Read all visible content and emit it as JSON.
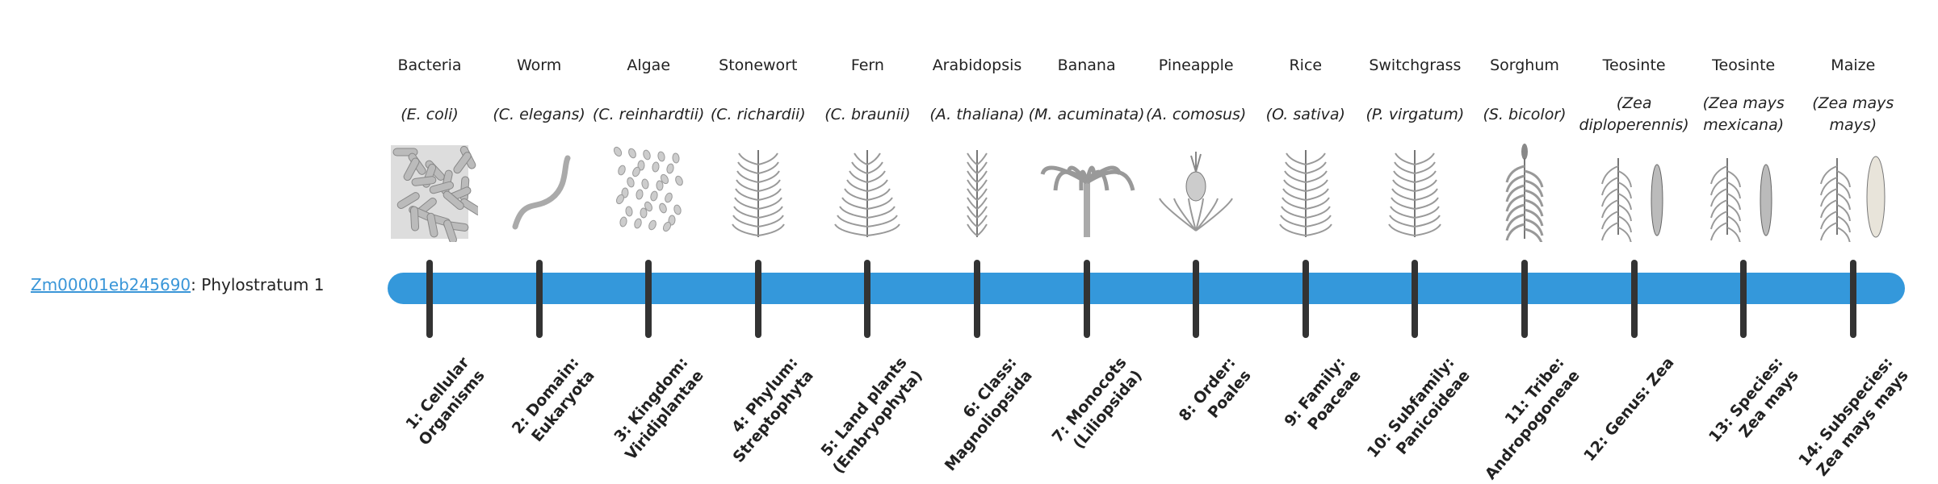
{
  "gene": {
    "id": "Zm00001eb245690",
    "suffix": ": Phylostratum 1"
  },
  "colors": {
    "bar": "#3498db",
    "tick": "#333333",
    "link": "#3a96d8"
  },
  "strata": [
    {
      "common": "Bacteria",
      "sci": "(E. coli)",
      "icon": "bacteria-icon",
      "rank": "1: Cellular Organisms"
    },
    {
      "common": "Worm",
      "sci": "(C. elegans)",
      "icon": "worm-icon",
      "rank": "2: Domain: Eukaryota"
    },
    {
      "common": "Algae",
      "sci": "(C. reinhardtii)",
      "icon": "algae-icon",
      "rank": "3: Kingdom: Viridiplantae"
    },
    {
      "common": "Stonewort",
      "sci": "(C. richardii)",
      "icon": "stonewort-icon",
      "rank": "4: Phylum: Streptophyta"
    },
    {
      "common": "Fern",
      "sci": "(C. braunii)",
      "icon": "fern-icon",
      "rank": "5: Land plants (Embryophyta)"
    },
    {
      "common": "Arabidopsis",
      "sci": "(A. thaliana)",
      "icon": "arabidopsis-icon",
      "rank": "6: Class: Magnoliopsida"
    },
    {
      "common": "Banana",
      "sci": "(M. acuminata)",
      "icon": "banana-icon",
      "rank": "7: Monocots (Liliopsida)"
    },
    {
      "common": "Pineapple",
      "sci": "(A. comosus)",
      "icon": "pineapple-icon",
      "rank": "8: Order: Poales"
    },
    {
      "common": "Rice",
      "sci": "(O. sativa)",
      "icon": "rice-icon",
      "rank": "9: Family: Poaceae"
    },
    {
      "common": "Switchgrass",
      "sci": "(P. virgatum)",
      "icon": "switchgrass-icon",
      "rank": "10: Subfamily: Panicoideae"
    },
    {
      "common": "Sorghum",
      "sci": "(S. bicolor)",
      "icon": "sorghum-icon",
      "rank": "11: Tribe: Andropogoneae"
    },
    {
      "common": "Teosinte",
      "sci": "(Zea diploperennis)",
      "icon": "teosinte-icon",
      "rank": "12: Genus: Zea"
    },
    {
      "common": "Teosinte",
      "sci": "(Zea mays mexicana)",
      "icon": "teosinte-icon",
      "rank": "13: Species: Zea mays"
    },
    {
      "common": "Maize",
      "sci": "(Zea mays mays)",
      "icon": "maize-icon",
      "rank": "14: Subspecies: Zea mays mays"
    }
  ],
  "current_stratum": 1
}
